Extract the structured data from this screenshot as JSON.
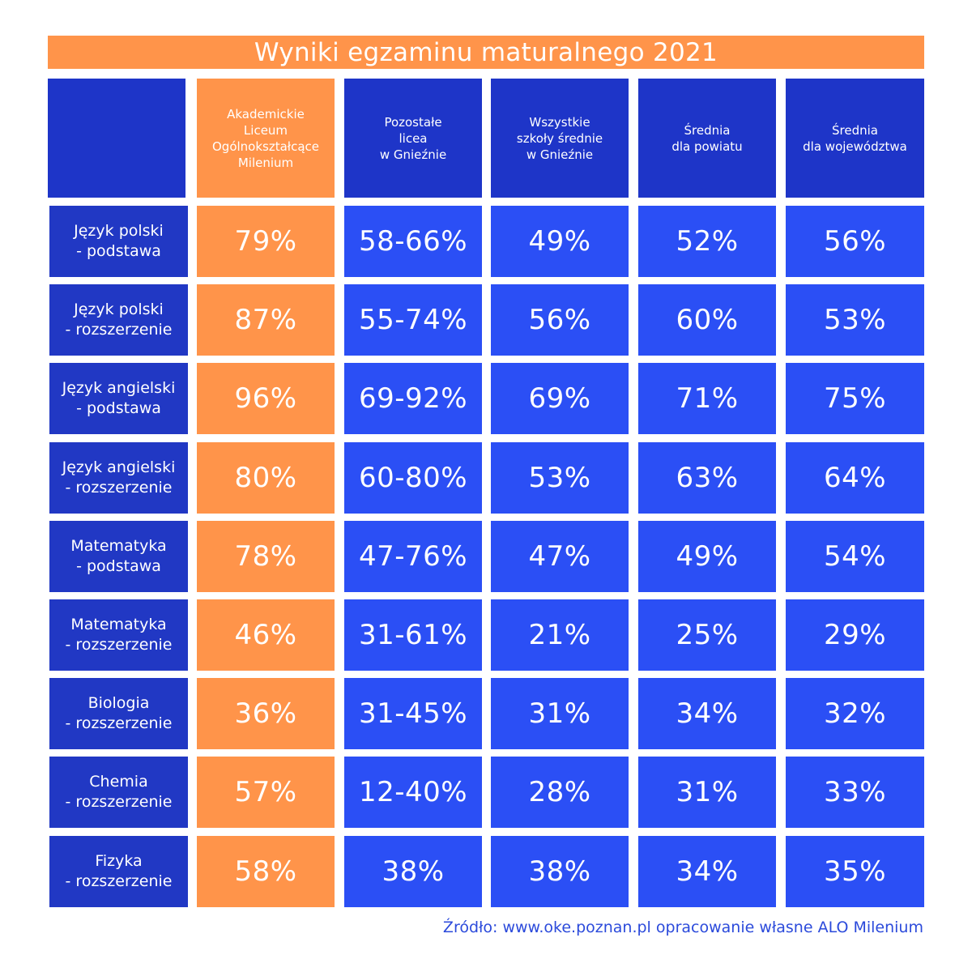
{
  "title": "Wyniki egzaminu maturalnego 2021",
  "source": "Źródło: www.oke.poznan.pl opracowanie własne ALO Milenium",
  "colors": {
    "header_blue": "#1E35C8",
    "label_blue": "#2138C4",
    "value_blue": "#2B4FF5",
    "orange": "#FF944A"
  },
  "chart_data": {
    "type": "table",
    "title": "Wyniki egzaminu maturalnego 2021",
    "columns": [
      "",
      "Akademickie\nLiceum\nOgólnokształcące\nMilenium",
      "Pozostałe\nlicea\nw Gnieźnie",
      "Wszystkie\nszkoły średnie\nw Gnieźnie",
      "Średnia\ndla powiatu",
      "Średnia\ndla województwa"
    ],
    "rows": [
      {
        "label": "Język polski\n- podstawa",
        "values": [
          "79%",
          "58-66%",
          "49%",
          "52%",
          "56%"
        ]
      },
      {
        "label": "Język polski\n- rozszerzenie",
        "values": [
          "87%",
          "55-74%",
          "56%",
          "60%",
          "53%"
        ]
      },
      {
        "label": "Język angielski\n- podstawa",
        "values": [
          "96%",
          "69-92%",
          "69%",
          "71%",
          "75%"
        ]
      },
      {
        "label": "Język angielski\n- rozszerzenie",
        "values": [
          "80%",
          "60-80%",
          "53%",
          "63%",
          "64%"
        ]
      },
      {
        "label": "Matematyka\n- podstawa",
        "values": [
          "78%",
          "47-76%",
          "47%",
          "49%",
          "54%"
        ]
      },
      {
        "label": "Matematyka\n- rozszerzenie",
        "values": [
          "46%",
          "31-61%",
          "21%",
          "25%",
          "29%"
        ]
      },
      {
        "label": "Biologia\n- rozszerzenie",
        "values": [
          "36%",
          "31-45%",
          "31%",
          "34%",
          "32%"
        ]
      },
      {
        "label": "Chemia\n- rozszerzenie",
        "values": [
          "57%",
          "12-40%",
          "28%",
          "31%",
          "33%"
        ]
      },
      {
        "label": "Fizyka\n- rozszerzenie",
        "values": [
          "58%",
          "38%",
          "38%",
          "34%",
          "35%"
        ]
      }
    ]
  }
}
